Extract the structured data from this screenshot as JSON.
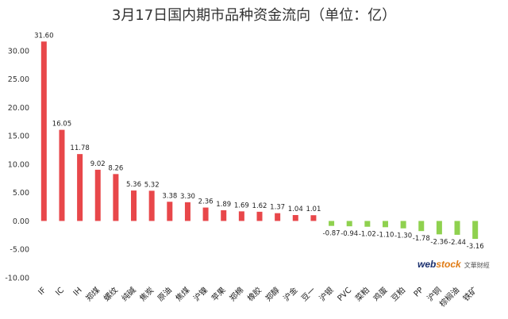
{
  "chart_data": {
    "type": "bar",
    "title": "3月17日国内期市品种资金流向（单位：亿）",
    "xlabel": "",
    "ylabel": "",
    "ylim": [
      -10,
      35
    ],
    "yticks": [
      "-10.00",
      "-5.00",
      "0.00",
      "5.00",
      "10.00",
      "15.00",
      "20.00",
      "25.00",
      "30.00"
    ],
    "grid": false,
    "categories": [
      "IF",
      "IC",
      "IH",
      "郑煤",
      "螺纹",
      "纯碱",
      "焦炭",
      "原油",
      "焦煤",
      "沪镍",
      "苹果",
      "郑棉",
      "橡胶",
      "郑醇",
      "沪金",
      "豆一",
      "沪银",
      "PVC",
      "菜粕",
      "鸡蛋",
      "豆粕",
      "PP",
      "沪铜",
      "棕榈油",
      "铁矿"
    ],
    "values": [
      31.6,
      16.05,
      11.78,
      9.02,
      8.26,
      5.36,
      5.32,
      3.38,
      3.3,
      2.36,
      1.89,
      1.69,
      1.62,
      1.37,
      1.04,
      1.01,
      -0.87,
      -0.94,
      -1.02,
      -1.1,
      -1.3,
      -1.78,
      -2.36,
      -2.44,
      -3.16
    ],
    "value_labels": [
      "31.60",
      "16.05",
      "11.78",
      "9.02",
      "8.26",
      "5.36",
      "5.32",
      "3.38",
      "3.30",
      "2.36",
      "1.89",
      "1.69",
      "1.62",
      "1.37",
      "1.04",
      "1.01",
      "-0.87",
      "-0.94",
      "-1.02",
      "-1.10",
      "-1.30",
      "-1.78",
      "-2.36",
      "-2.44",
      "-3.16"
    ],
    "colors": {
      "positive": "#e8474a",
      "negative": "#8fd14f"
    }
  },
  "watermark": {
    "brand_web": "web",
    "brand_stock": "stock",
    "brand_cn": "文華財經"
  }
}
